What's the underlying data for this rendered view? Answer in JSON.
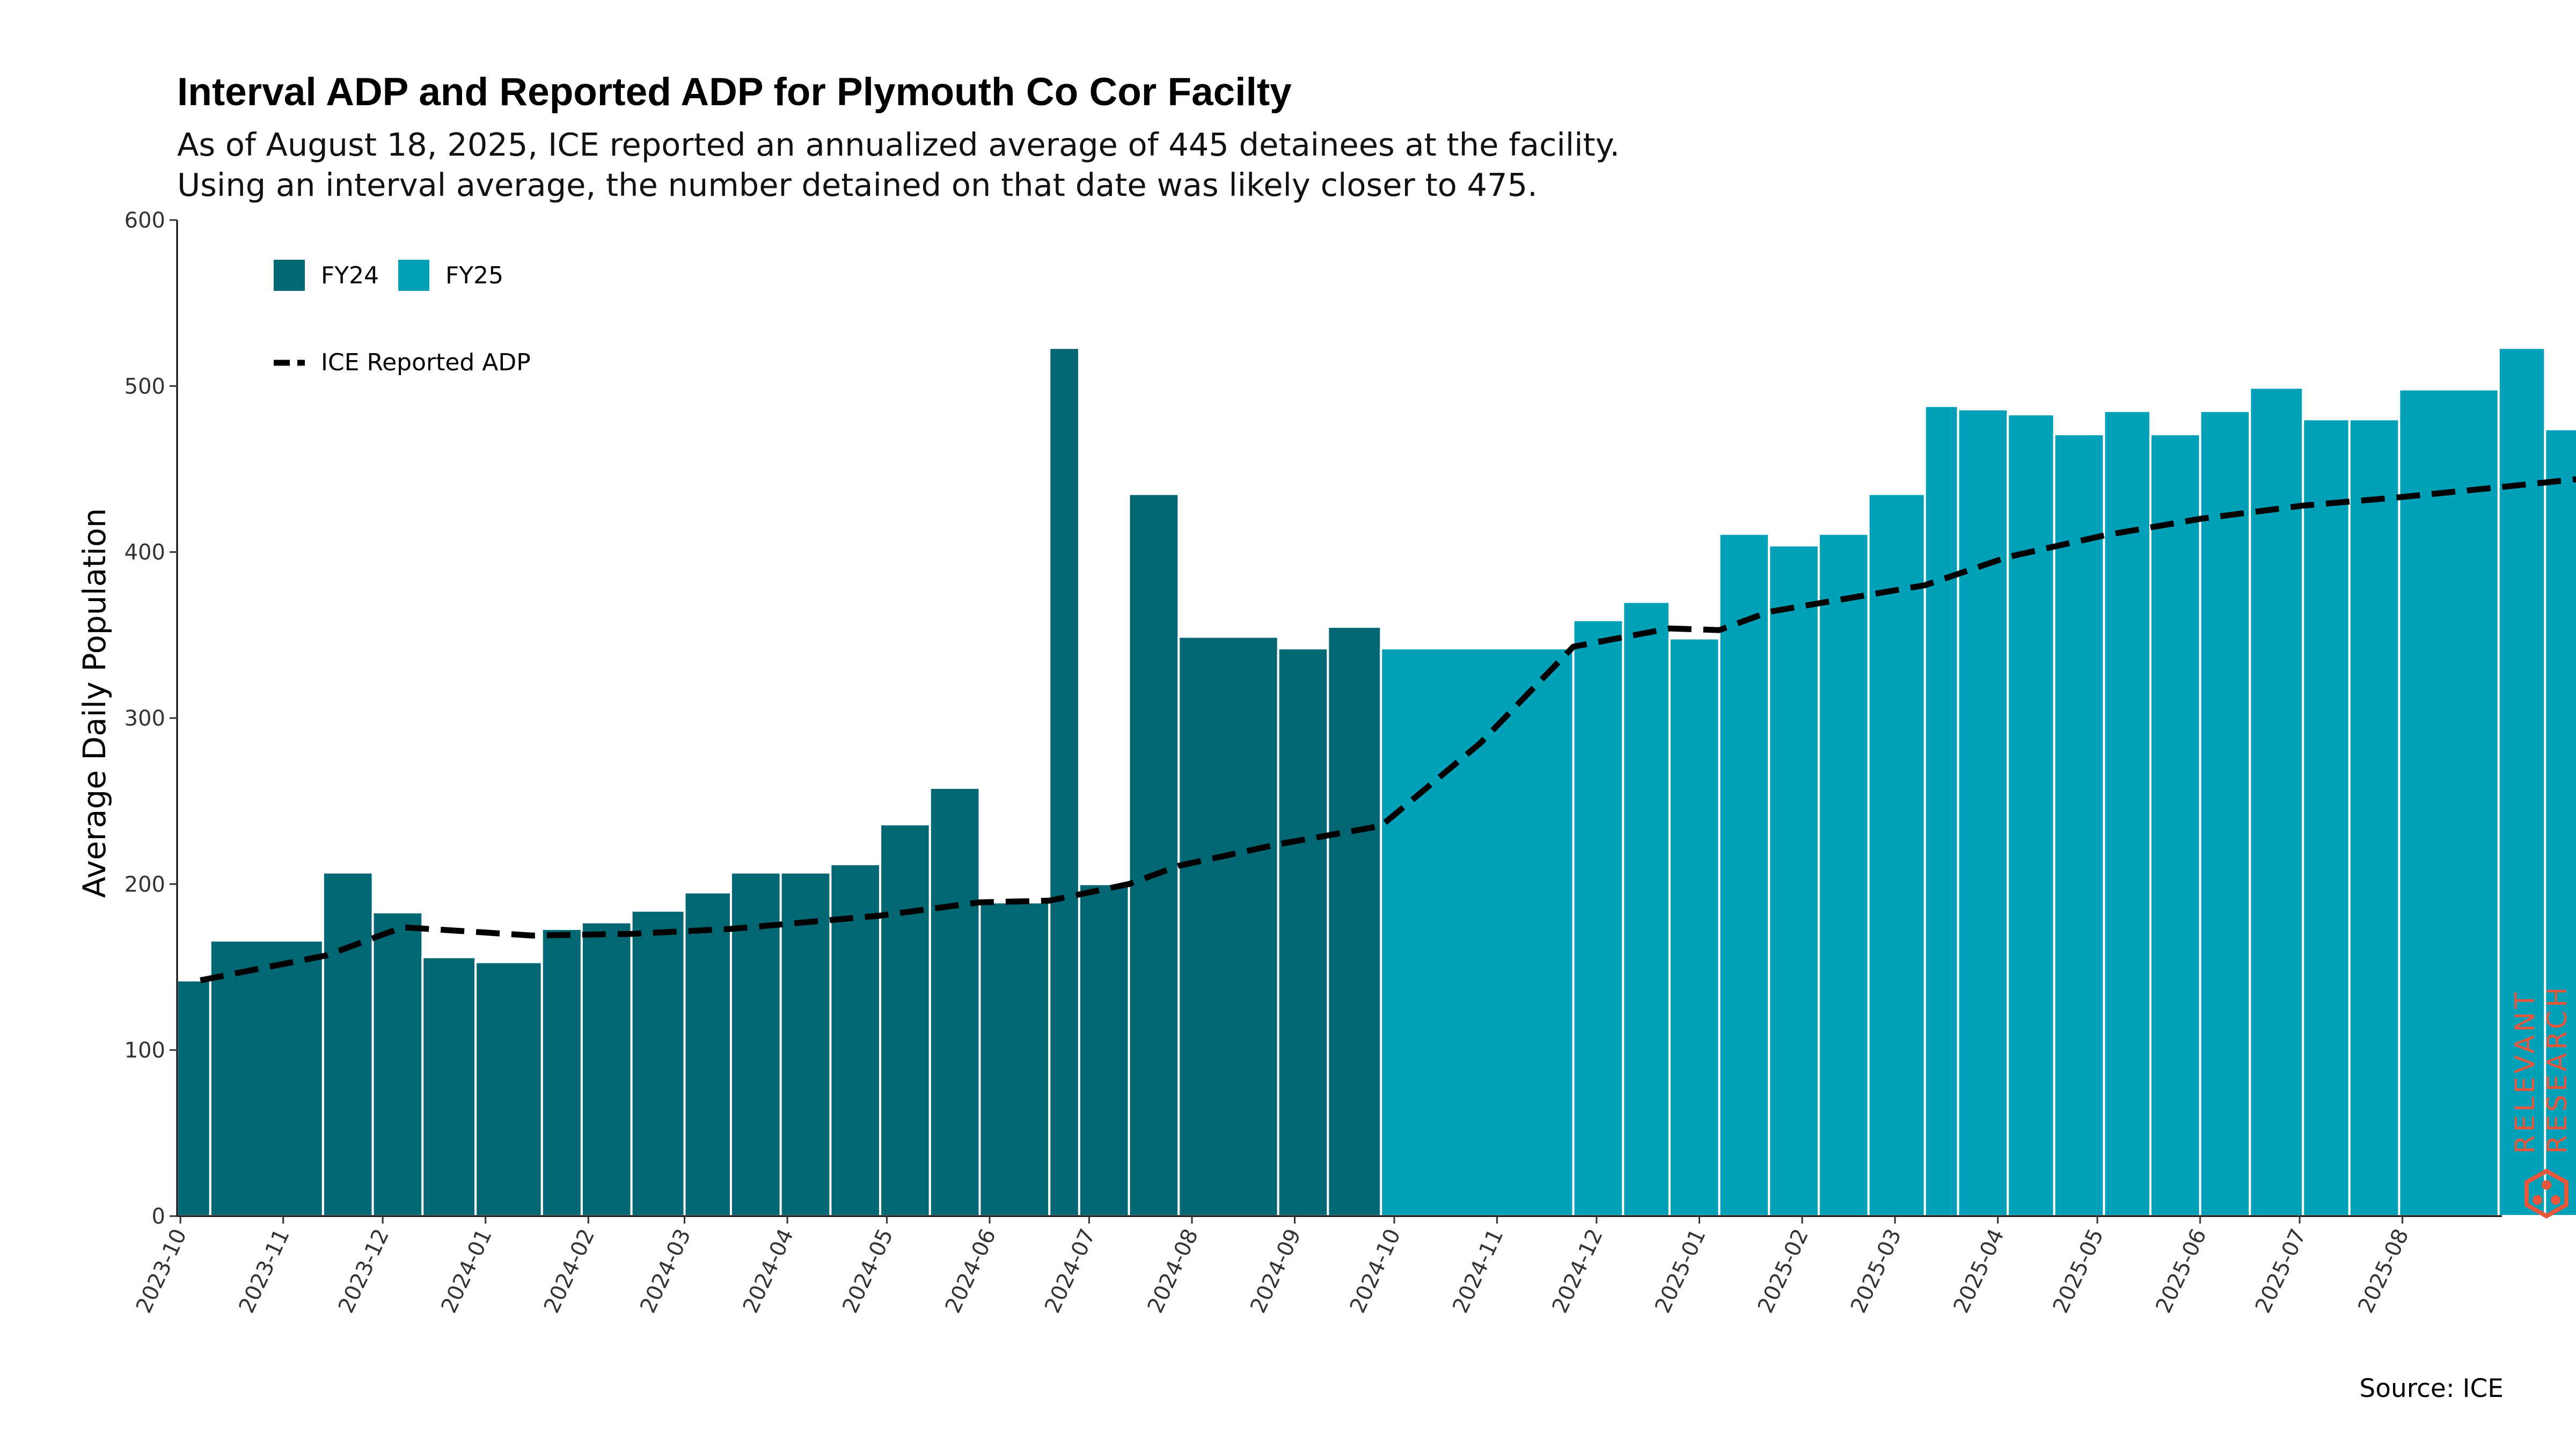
{
  "title": "Interval ADP and Reported ADP for Plymouth Co Cor Facilty",
  "subtitle_lines": [
    "As of August 18, 2025, ICE reported an annualized average of 445 detainees at the facility.",
    "Using an interval average, the number detained on that date was likely closer to 475."
  ],
  "source": "Source: ICE",
  "logo": {
    "line1": "RELEVANT",
    "line2": "RESEARCH",
    "color": "#e8573c"
  },
  "chart_data": {
    "type": "bar",
    "ylabel": "Average Daily Population",
    "xlabel": "",
    "ylim": [
      0,
      600
    ],
    "yticks": [
      0,
      100,
      200,
      300,
      400,
      500,
      600
    ],
    "xlim": [
      "2023-09-30",
      "2025-08-31"
    ],
    "xticks": [
      "2023-10",
      "2023-11",
      "2023-12",
      "2024-01",
      "2024-02",
      "2024-03",
      "2024-04",
      "2024-05",
      "2024-06",
      "2024-07",
      "2024-08",
      "2024-09",
      "2024-10",
      "2024-11",
      "2024-12",
      "2025-01",
      "2025-02",
      "2025-03",
      "2025-04",
      "2025-05",
      "2025-06",
      "2025-07",
      "2025-08"
    ],
    "grid": false,
    "legend_position": "top-left",
    "colors": {
      "FY24": "#036673",
      "FY25": "#00a1b8",
      "reported": "#000000"
    },
    "series": [
      {
        "name": "FY24",
        "bars": [
          {
            "start": "2023-09-30",
            "end": "2023-10-10",
            "value": 142
          },
          {
            "start": "2023-10-10",
            "end": "2023-11-13",
            "value": 166
          },
          {
            "start": "2023-11-13",
            "end": "2023-11-28",
            "value": 207
          },
          {
            "start": "2023-11-28",
            "end": "2023-12-13",
            "value": 183
          },
          {
            "start": "2023-12-13",
            "end": "2023-12-29",
            "value": 156
          },
          {
            "start": "2023-12-29",
            "end": "2024-01-18",
            "value": 153
          },
          {
            "start": "2024-01-18",
            "end": "2024-01-30",
            "value": 173
          },
          {
            "start": "2024-01-30",
            "end": "2024-02-14",
            "value": 177
          },
          {
            "start": "2024-02-14",
            "end": "2024-03-01",
            "value": 184
          },
          {
            "start": "2024-03-01",
            "end": "2024-03-15",
            "value": 195
          },
          {
            "start": "2024-03-15",
            "end": "2024-03-30",
            "value": 207
          },
          {
            "start": "2024-03-30",
            "end": "2024-04-14",
            "value": 207
          },
          {
            "start": "2024-04-14",
            "end": "2024-04-29",
            "value": 212
          },
          {
            "start": "2024-04-29",
            "end": "2024-05-14",
            "value": 236
          },
          {
            "start": "2024-05-14",
            "end": "2024-05-29",
            "value": 258
          },
          {
            "start": "2024-05-29",
            "end": "2024-06-19",
            "value": 189
          },
          {
            "start": "2024-06-19",
            "end": "2024-06-28",
            "value": 523
          },
          {
            "start": "2024-06-28",
            "end": "2024-07-13",
            "value": 200
          },
          {
            "start": "2024-07-13",
            "end": "2024-07-28",
            "value": 435
          },
          {
            "start": "2024-07-28",
            "end": "2024-08-27",
            "value": 349
          },
          {
            "start": "2024-08-27",
            "end": "2024-09-11",
            "value": 342
          },
          {
            "start": "2024-09-11",
            "end": "2024-09-27",
            "value": 355
          }
        ]
      },
      {
        "name": "FY25",
        "bars": [
          {
            "start": "2024-09-27",
            "end": "2024-11-24",
            "value": 342
          },
          {
            "start": "2024-11-24",
            "end": "2024-12-09",
            "value": 359
          },
          {
            "start": "2024-12-09",
            "end": "2024-12-23",
            "value": 370
          },
          {
            "start": "2024-12-23",
            "end": "2025-01-07",
            "value": 348
          },
          {
            "start": "2025-01-07",
            "end": "2025-01-22",
            "value": 411
          },
          {
            "start": "2025-01-22",
            "end": "2025-02-06",
            "value": 404
          },
          {
            "start": "2025-02-06",
            "end": "2025-02-21",
            "value": 411
          },
          {
            "start": "2025-02-21",
            "end": "2025-03-10",
            "value": 435
          },
          {
            "start": "2025-03-10",
            "end": "2025-03-20",
            "value": 488
          },
          {
            "start": "2025-03-20",
            "end": "2025-04-04",
            "value": 486
          },
          {
            "start": "2025-04-04",
            "end": "2025-04-18",
            "value": 483
          },
          {
            "start": "2025-04-18",
            "end": "2025-05-03",
            "value": 471
          },
          {
            "start": "2025-05-03",
            "end": "2025-05-17",
            "value": 485
          },
          {
            "start": "2025-05-17",
            "end": "2025-06-01",
            "value": 471
          },
          {
            "start": "2025-06-01",
            "end": "2025-06-16",
            "value": 485
          },
          {
            "start": "2025-06-16",
            "end": "2025-07-02",
            "value": 499
          },
          {
            "start": "2025-07-02",
            "end": "2025-07-16",
            "value": 480
          },
          {
            "start": "2025-07-16",
            "end": "2025-07-31",
            "value": 480
          },
          {
            "start": "2025-07-31",
            "end": "2025-08-30",
            "value": 498
          },
          {
            "start": "2025-08-30",
            "end": "2025-09-13",
            "value": 523
          },
          {
            "start": "2025-09-13",
            "end": "2025-09-28",
            "value": 474
          }
        ]
      }
    ],
    "reported_series": {
      "name": "ICE Reported ADP",
      "style": "dashed",
      "points": [
        {
          "x": "2023-10-07",
          "y": 142
        },
        {
          "x": "2023-11-14",
          "y": 157
        },
        {
          "x": "2023-12-07",
          "y": 174
        },
        {
          "x": "2024-01-15",
          "y": 169
        },
        {
          "x": "2024-02-14",
          "y": 170
        },
        {
          "x": "2024-03-15",
          "y": 173
        },
        {
          "x": "2024-04-29",
          "y": 181
        },
        {
          "x": "2024-05-29",
          "y": 189
        },
        {
          "x": "2024-06-19",
          "y": 190
        },
        {
          "x": "2024-07-13",
          "y": 200
        },
        {
          "x": "2024-07-28",
          "y": 211
        },
        {
          "x": "2024-08-27",
          "y": 224
        },
        {
          "x": "2024-09-27",
          "y": 235
        },
        {
          "x": "2024-10-27",
          "y": 285
        },
        {
          "x": "2024-11-24",
          "y": 343
        },
        {
          "x": "2024-12-23",
          "y": 354
        },
        {
          "x": "2025-01-07",
          "y": 353
        },
        {
          "x": "2025-01-22",
          "y": 364
        },
        {
          "x": "2025-03-10",
          "y": 380
        },
        {
          "x": "2025-04-04",
          "y": 397
        },
        {
          "x": "2025-05-03",
          "y": 410
        },
        {
          "x": "2025-06-01",
          "y": 420
        },
        {
          "x": "2025-07-02",
          "y": 428
        },
        {
          "x": "2025-07-31",
          "y": 433
        },
        {
          "x": "2025-08-30",
          "y": 439
        },
        {
          "x": "2025-09-28",
          "y": 445
        }
      ]
    }
  }
}
